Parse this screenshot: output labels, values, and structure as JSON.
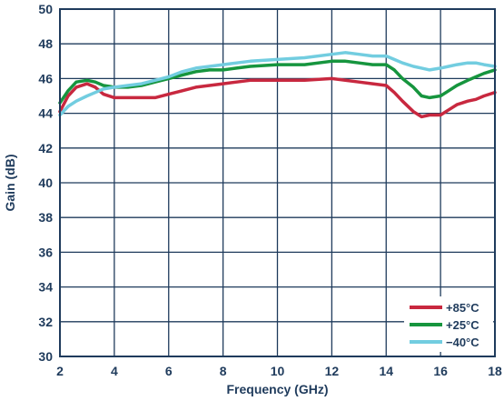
{
  "chart_data": {
    "type": "line",
    "title": "",
    "xlabel": "Frequency (GHz)",
    "ylabel": "Gain (dB)",
    "xlim": [
      2,
      18
    ],
    "ylim": [
      30,
      50
    ],
    "xticks": [
      2,
      4,
      6,
      8,
      10,
      12,
      14,
      16,
      18
    ],
    "yticks": [
      30,
      32,
      34,
      36,
      38,
      40,
      42,
      44,
      46,
      48,
      50
    ],
    "grid": true,
    "legend_position": "bottom-right",
    "colors": {
      "axis": "#1f3b5c",
      "grid": "#1f3b5c"
    },
    "series": [
      {
        "name": "+85°C",
        "color": "#c8283f",
        "x": [
          2,
          2.3,
          2.6,
          3,
          3.3,
          3.6,
          4,
          4.5,
          5,
          5.5,
          6,
          6.5,
          7,
          7.5,
          8,
          8.5,
          9,
          10,
          11,
          12,
          13,
          13.5,
          14,
          14.3,
          14.6,
          15,
          15.3,
          15.6,
          16,
          16.3,
          16.6,
          17,
          17.3,
          17.6,
          18
        ],
        "y": [
          44.1,
          45.0,
          45.5,
          45.7,
          45.5,
          45.1,
          44.9,
          44.9,
          44.9,
          44.9,
          45.1,
          45.3,
          45.5,
          45.6,
          45.7,
          45.8,
          45.9,
          45.9,
          45.9,
          46.0,
          45.8,
          45.7,
          45.6,
          45.2,
          44.7,
          44.1,
          43.8,
          43.9,
          43.9,
          44.2,
          44.5,
          44.7,
          44.8,
          45.0,
          45.2
        ]
      },
      {
        "name": "+25°C",
        "color": "#16953e",
        "x": [
          2,
          2.3,
          2.6,
          3,
          3.3,
          3.6,
          4,
          4.5,
          5,
          5.5,
          6,
          6.5,
          7,
          7.5,
          8,
          8.5,
          9,
          10,
          11,
          12,
          12.5,
          13,
          13.5,
          14,
          14.3,
          14.6,
          15,
          15.3,
          15.6,
          16,
          16.3,
          16.6,
          17,
          17.3,
          17.6,
          18
        ],
        "y": [
          44.6,
          45.3,
          45.8,
          45.9,
          45.8,
          45.6,
          45.5,
          45.5,
          45.6,
          45.8,
          46.0,
          46.2,
          46.4,
          46.5,
          46.5,
          46.6,
          46.7,
          46.8,
          46.8,
          47.0,
          47.0,
          46.9,
          46.8,
          46.8,
          46.5,
          46.0,
          45.5,
          45.0,
          44.9,
          45.0,
          45.3,
          45.6,
          45.9,
          46.1,
          46.3,
          46.5
        ]
      },
      {
        "name": "−40°C",
        "color": "#72cde0",
        "x": [
          2,
          2.3,
          2.6,
          3,
          3.3,
          3.6,
          4,
          4.5,
          5,
          5.5,
          6,
          6.5,
          7,
          7.5,
          8,
          8.5,
          9,
          10,
          11,
          12,
          12.5,
          13,
          13.5,
          14,
          14.3,
          14.6,
          15,
          15.3,
          15.6,
          16,
          16.3,
          16.6,
          17,
          17.3,
          17.6,
          18
        ],
        "y": [
          43.9,
          44.4,
          44.7,
          45.0,
          45.2,
          45.4,
          45.5,
          45.6,
          45.7,
          45.9,
          46.1,
          46.4,
          46.6,
          46.7,
          46.8,
          46.9,
          47.0,
          47.1,
          47.2,
          47.4,
          47.5,
          47.4,
          47.3,
          47.3,
          47.1,
          46.9,
          46.7,
          46.6,
          46.5,
          46.6,
          46.7,
          46.8,
          46.9,
          46.9,
          46.8,
          46.7
        ]
      }
    ]
  }
}
